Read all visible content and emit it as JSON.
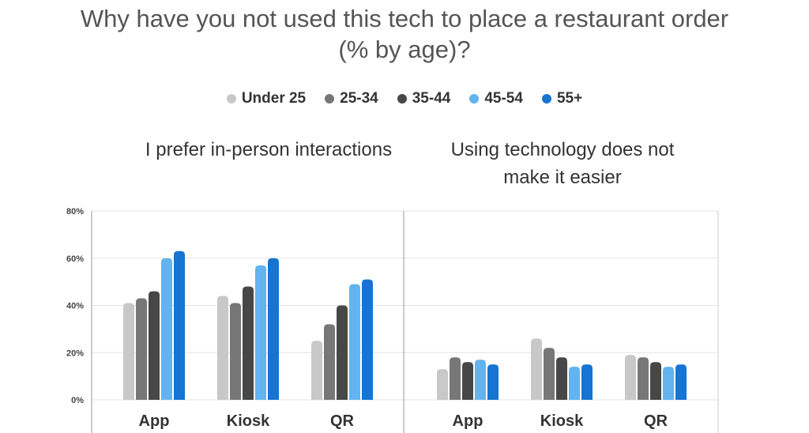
{
  "title": {
    "line1": "Why have you not used this tech to place a restaurant order",
    "line2": "(% by age)?"
  },
  "legend": [
    {
      "label": "Under 25",
      "color": "#c8c8c8"
    },
    {
      "label": "25-34",
      "color": "#777777"
    },
    {
      "label": "35-44",
      "color": "#474747"
    },
    {
      "label": "45-54",
      "color": "#62b3ef"
    },
    {
      "label": "55+",
      "color": "#1674d2"
    }
  ],
  "chart_data": [
    {
      "type": "bar",
      "title": "I prefer in-person interactions",
      "categories": [
        "App",
        "Kiosk",
        "QR"
      ],
      "series": [
        {
          "name": "Under 25",
          "values": [
            41,
            44,
            25
          ]
        },
        {
          "name": "25-34",
          "values": [
            43,
            41,
            32
          ]
        },
        {
          "name": "35-44",
          "values": [
            46,
            48,
            40
          ]
        },
        {
          "name": "45-54",
          "values": [
            60,
            57,
            49
          ]
        },
        {
          "name": "55+",
          "values": [
            63,
            60,
            51
          ]
        }
      ],
      "ylim": [
        0,
        80
      ],
      "yticks": [
        "0%",
        "20%",
        "40%",
        "60%",
        "80%"
      ],
      "ytick_values": [
        0,
        20,
        40,
        60,
        80
      ],
      "xlabel": "",
      "ylabel": "",
      "grid": true
    },
    {
      "type": "bar",
      "title": "Using technology does not make it easier",
      "title_lines": [
        "Using technology does not",
        "make it easier"
      ],
      "categories": [
        "App",
        "Kiosk",
        "QR"
      ],
      "series": [
        {
          "name": "Under 25",
          "values": [
            13,
            26,
            19
          ]
        },
        {
          "name": "25-34",
          "values": [
            18,
            22,
            18
          ]
        },
        {
          "name": "35-44",
          "values": [
            16,
            18,
            16
          ]
        },
        {
          "name": "45-54",
          "values": [
            17,
            14,
            14
          ]
        },
        {
          "name": "55+",
          "values": [
            15,
            15,
            15
          ]
        }
      ],
      "ylim": [
        0,
        80
      ],
      "xlabel": "",
      "ylabel": "",
      "grid": true
    }
  ]
}
